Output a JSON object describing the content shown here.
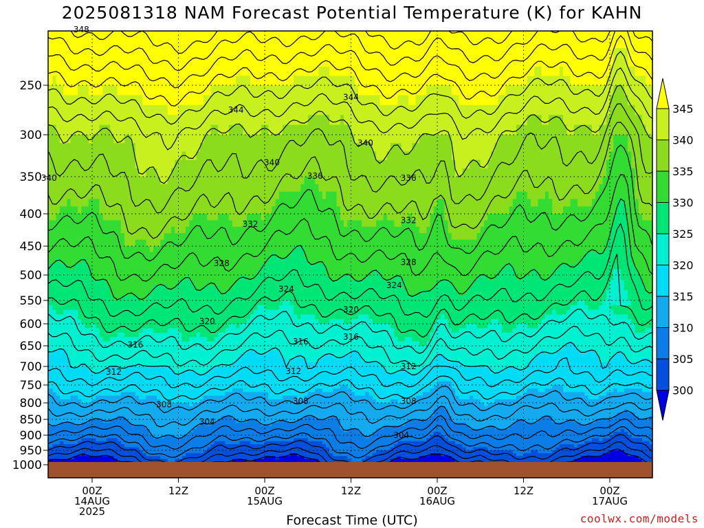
{
  "title": "2025081318 NAM Forecast Potential Temperature (K) for KAHN",
  "x_axis_title": "Forecast Time (UTC)",
  "credit": "coolwx.com/models",
  "chart_data": {
    "type": "heatmap",
    "title": "2025081318 NAM Forecast Potential Temperature (K) for KAHN",
    "xlabel": "Forecast Time (UTC)",
    "ylabel": "",
    "y_ticks": [
      250,
      300,
      350,
      400,
      450,
      500,
      550,
      600,
      650,
      700,
      750,
      800,
      850,
      900,
      950,
      1000
    ],
    "y_axis_reversed": true,
    "x_ticks": [
      {
        "line1": "00Z",
        "line2": "14AUG",
        "line3": "2025"
      },
      {
        "line1": "12Z",
        "line2": "",
        "line3": ""
      },
      {
        "line1": "00Z",
        "line2": "15AUG",
        "line3": ""
      },
      {
        "line1": "12Z",
        "line2": "",
        "line3": ""
      },
      {
        "line1": "00Z",
        "line2": "16AUG",
        "line3": ""
      },
      {
        "line1": "12Z",
        "line2": "",
        "line3": ""
      },
      {
        "line1": "00Z",
        "line2": "17AUG",
        "line3": ""
      }
    ],
    "colorbar": {
      "levels": [
        300,
        305,
        310,
        315,
        320,
        325,
        330,
        335,
        340,
        345
      ],
      "colors": [
        "#0000e6",
        "#0050dc",
        "#0a7ee6",
        "#14aaf0",
        "#00dcf5",
        "#00f0d2",
        "#00e676",
        "#32dc32",
        "#8cdc1e",
        "#c8f01e",
        "#ffff00"
      ]
    },
    "contour_interval": 2,
    "contour_labels": [
      {
        "value": 348,
        "hour": -1.5,
        "p": 190
      },
      {
        "value": 344,
        "hour": 20,
        "p": 275
      },
      {
        "value": 344,
        "hour": 36,
        "p": 262
      },
      {
        "value": 340,
        "hour": 25,
        "p": 333
      },
      {
        "value": 340,
        "hour": 38,
        "p": 310
      },
      {
        "value": 340,
        "hour": -6,
        "p": 352
      },
      {
        "value": 336,
        "hour": 31,
        "p": 349
      },
      {
        "value": 336,
        "hour": 44,
        "p": 352
      },
      {
        "value": 336,
        "hour": -26,
        "p": 408
      },
      {
        "value": 332,
        "hour": 22,
        "p": 416
      },
      {
        "value": 332,
        "hour": 44,
        "p": 410
      },
      {
        "value": 332,
        "hour": -34,
        "p": 455
      },
      {
        "value": 328,
        "hour": 18,
        "p": 480
      },
      {
        "value": 328,
        "hour": 44,
        "p": 478
      },
      {
        "value": 328,
        "hour": -11,
        "p": 490
      },
      {
        "value": 324,
        "hour": 27,
        "p": 528
      },
      {
        "value": 324,
        "hour": 42,
        "p": 520
      },
      {
        "value": 324,
        "hour": -21,
        "p": 550
      },
      {
        "value": 320,
        "hour": 16,
        "p": 595
      },
      {
        "value": 320,
        "hour": 36,
        "p": 570
      },
      {
        "value": 320,
        "hour": -30,
        "p": 588
      },
      {
        "value": 316,
        "hour": 6,
        "p": 648
      },
      {
        "value": 316,
        "hour": 29,
        "p": 641
      },
      {
        "value": 316,
        "hour": 36,
        "p": 630
      },
      {
        "value": 312,
        "hour": 3,
        "p": 715
      },
      {
        "value": 312,
        "hour": 28,
        "p": 713
      },
      {
        "value": 312,
        "hour": 44,
        "p": 700
      },
      {
        "value": 308,
        "hour": 10,
        "p": 805
      },
      {
        "value": 308,
        "hour": 29,
        "p": 795
      },
      {
        "value": 308,
        "hour": 44,
        "p": 795
      },
      {
        "value": 304,
        "hour": 43,
        "p": 900
      },
      {
        "value": 304,
        "hour": 16,
        "p": 858
      }
    ]
  }
}
